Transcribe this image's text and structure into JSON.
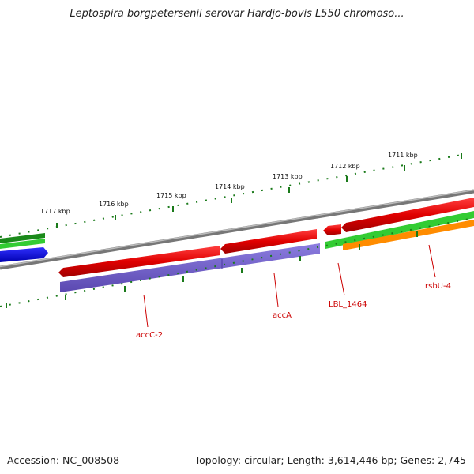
{
  "map": {
    "title": "Leptospira borgpetersenii serovar Hardjo-bovis L550 chromoso...",
    "accession": "Accession: NC_008508",
    "topology": "Topology: circular; Length: 3,614,446 bp; Genes: 2,745"
  },
  "ruler": {
    "unit": "kbp",
    "labels": [
      "1717 kbp",
      "1716 kbp",
      "1715 kbp",
      "1714 kbp",
      "1713 kbp",
      "1712 kbp",
      "1711 kbp"
    ]
  },
  "genes": [
    {
      "name": "accC-2",
      "strand": "forward",
      "color": "#e00000"
    },
    {
      "name": "accA",
      "strand": "forward",
      "color": "#e00000"
    },
    {
      "name": "LBL_1464",
      "strand": "forward",
      "color": "#e00000"
    },
    {
      "name": "rsbU-4",
      "strand": "forward",
      "color": "#e00000"
    }
  ],
  "colors": {
    "forward_cds": "#e00000",
    "reverse_cds": "#0000e0",
    "track_purple": "#7766cc",
    "track_green": "#33cc33",
    "track_dark_green": "#1a8a1a",
    "track_orange": "#ff8c00",
    "backbone": "#888888",
    "tick": "#1a7a1a",
    "gene_label": "#cc0000"
  }
}
